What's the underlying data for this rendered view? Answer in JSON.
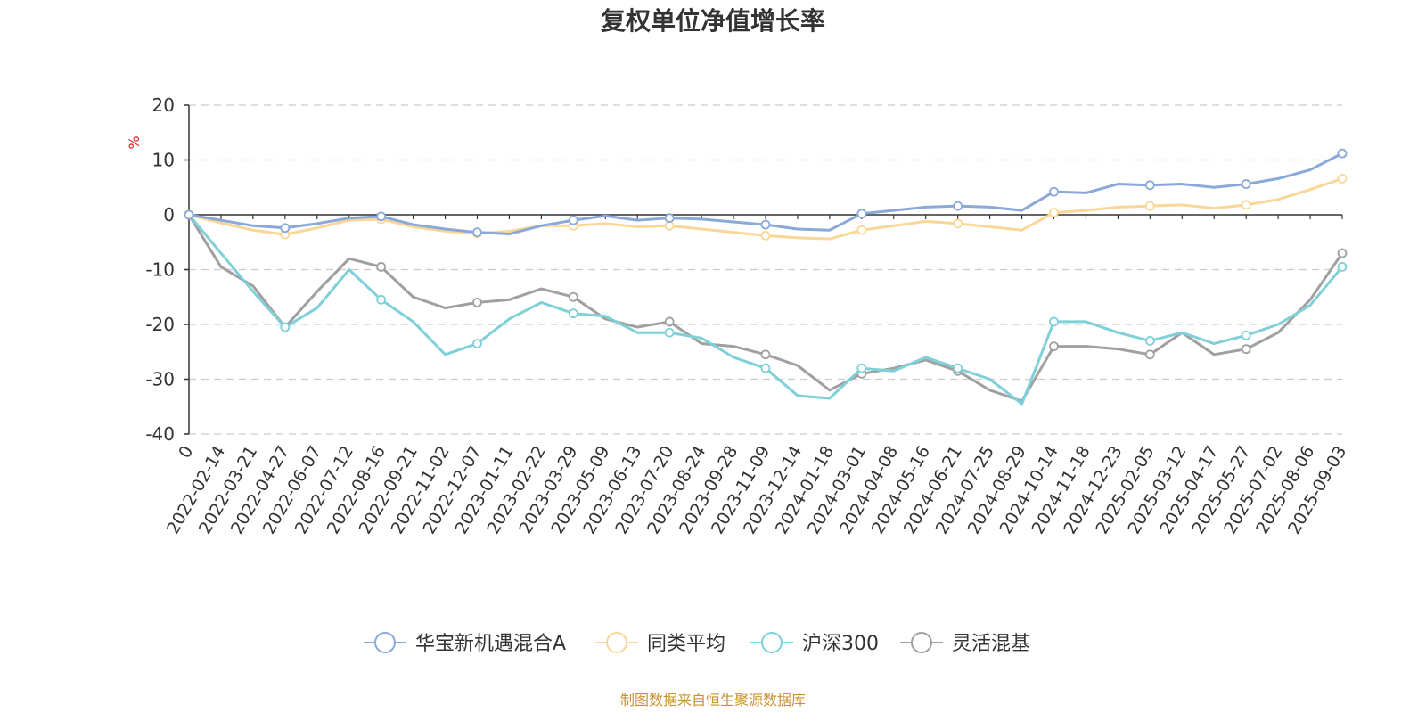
{
  "chart_data": {
    "type": "line",
    "title": "复权单位净值增长率",
    "ylabel": "%",
    "ylim": [
      -40,
      20
    ],
    "yticks": [
      20,
      10,
      0,
      -10,
      -20,
      -30,
      -40
    ],
    "grid": true,
    "legend_position": "bottom",
    "x": [
      "0",
      "2022-02-14",
      "2022-03-21",
      "2022-04-27",
      "2022-06-07",
      "2022-07-12",
      "2022-08-16",
      "2022-09-21",
      "2022-11-02",
      "2022-12-07",
      "2023-01-11",
      "2023-02-22",
      "2023-03-29",
      "2023-05-09",
      "2023-06-13",
      "2023-07-20",
      "2023-08-24",
      "2023-09-28",
      "2023-11-09",
      "2023-12-14",
      "2024-01-18",
      "2024-03-01",
      "2024-04-08",
      "2024-05-16",
      "2024-06-21",
      "2024-07-25",
      "2024-08-29",
      "2024-10-14",
      "2024-11-18",
      "2024-12-23",
      "2025-02-05",
      "2025-03-12",
      "2025-04-17",
      "2025-05-27",
      "2025-07-02",
      "2025-08-06",
      "2025-09-03"
    ],
    "series": [
      {
        "name": "华宝新机遇混合A",
        "color": "#8aa8d8",
        "values": [
          0,
          -1.0,
          -2.0,
          -2.4,
          -1.6,
          -0.6,
          -0.3,
          -1.8,
          -2.6,
          -3.2,
          -3.5,
          -2.0,
          -1.0,
          -0.2,
          -1.0,
          -0.6,
          -0.8,
          -1.3,
          -1.8,
          -2.6,
          -2.8,
          0.2,
          0.8,
          1.4,
          1.6,
          1.4,
          0.8,
          4.2,
          4.0,
          5.6,
          5.4,
          5.6,
          5.0,
          5.6,
          6.6,
          8.2,
          11.2
        ]
      },
      {
        "name": "同类平均",
        "color": "#fad797",
        "values": [
          0,
          -1.5,
          -2.8,
          -3.6,
          -2.4,
          -1.0,
          -0.8,
          -2.2,
          -3.0,
          -3.4,
          -3.0,
          -2.0,
          -2.0,
          -1.6,
          -2.2,
          -2.0,
          -2.6,
          -3.2,
          -3.8,
          -4.2,
          -4.4,
          -2.8,
          -2.0,
          -1.2,
          -1.6,
          -2.2,
          -2.8,
          0.4,
          0.8,
          1.4,
          1.6,
          1.8,
          1.2,
          1.8,
          2.8,
          4.6,
          6.6
        ]
      },
      {
        "name": "沪深300",
        "color": "#7fd0d8",
        "values": [
          0,
          -7.0,
          -14.0,
          -20.5,
          -17.0,
          -10.0,
          -15.5,
          -19.5,
          -25.5,
          -23.5,
          -19.0,
          -16.0,
          -18.0,
          -18.5,
          -21.5,
          -21.5,
          -22.5,
          -26.0,
          -28.0,
          -33.0,
          -33.5,
          -28.0,
          -28.5,
          -26.0,
          -28.0,
          -30.0,
          -34.5,
          -19.5,
          -19.5,
          -21.5,
          -23.0,
          -21.5,
          -23.5,
          -22.0,
          -20.0,
          -16.5,
          -9.5
        ]
      },
      {
        "name": "灵活混基",
        "color": "#a0a0a0",
        "values": [
          0,
          -9.5,
          -13.0,
          -20.5,
          -14.0,
          -8.0,
          -9.5,
          -15.0,
          -17.0,
          -16.0,
          -15.5,
          -13.5,
          -15.0,
          -19.0,
          -20.5,
          -19.5,
          -23.5,
          -24.0,
          -25.5,
          -27.5,
          -32.0,
          -29.0,
          -28.0,
          -26.5,
          -28.5,
          -32.0,
          -34.0,
          -24.0,
          -24.0,
          -24.5,
          -25.5,
          -21.5,
          -25.5,
          -24.5,
          -21.5,
          -15.5,
          -7.0
        ]
      }
    ]
  },
  "source_text": "制图数据来自恒生聚源数据库"
}
